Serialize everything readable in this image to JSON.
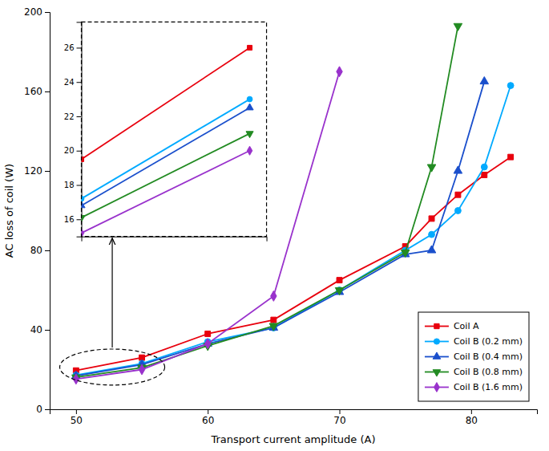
{
  "chart_data": [
    {
      "type": "line",
      "xlabel": "Transport current amplitude (A)",
      "ylabel": "AC loss of coil (W)",
      "xlim": [
        48,
        85
      ],
      "ylim": [
        0,
        200
      ],
      "xticks": [
        50,
        60,
        70,
        80
      ],
      "yticks": [
        0,
        40,
        80,
        120,
        160,
        200
      ],
      "legend": "lower right",
      "series": [
        {
          "name": "Coil A",
          "color": "#e8000d",
          "marker": "square",
          "x": [
            50,
            55,
            60,
            65,
            70,
            75,
            77,
            79,
            81,
            83
          ],
          "values": [
            19.5,
            26,
            38,
            45,
            65,
            82,
            96,
            108,
            118,
            127
          ]
        },
        {
          "name": "Coil B (0.2 mm)",
          "color": "#00aaff",
          "marker": "circle",
          "x": [
            50,
            55,
            60,
            65,
            70,
            75,
            77,
            79,
            81,
            83
          ],
          "values": [
            17.2,
            23,
            34,
            41,
            60,
            80,
            88,
            100,
            122,
            163
          ]
        },
        {
          "name": "Coil B (0.4 mm)",
          "color": "#1a4fcc",
          "marker": "triangle-up",
          "x": [
            50,
            55,
            60,
            65,
            70,
            75,
            77,
            79,
            81
          ],
          "values": [
            16.8,
            22.5,
            33,
            41,
            59,
            78,
            80,
            120,
            165
          ]
        },
        {
          "name": "Coil B (0.8 mm)",
          "color": "#228B22",
          "marker": "triangle-down",
          "x": [
            50,
            55,
            60,
            65,
            70,
            75,
            77,
            79
          ],
          "values": [
            16.1,
            21,
            32,
            42,
            60,
            79,
            122,
            193
          ]
        },
        {
          "name": "Coil B (1.6 mm)",
          "color": "#9932CC",
          "marker": "diamond",
          "x": [
            50,
            55,
            60,
            65,
            70
          ],
          "values": [
            15.2,
            20,
            33,
            57,
            170
          ]
        }
      ]
    },
    {
      "type": "line",
      "xlim": [
        50,
        55.5
      ],
      "ylim": [
        15.0,
        27.5
      ],
      "yticks": [
        16,
        18,
        20,
        22,
        24,
        26
      ],
      "tick_labels": "y",
      "series": [
        {
          "color": "#e8000d",
          "marker": "square",
          "x": [
            50,
            55
          ],
          "values": [
            19.5,
            26
          ]
        },
        {
          "color": "#00aaff",
          "marker": "circle",
          "x": [
            50,
            55
          ],
          "values": [
            17.2,
            23
          ]
        },
        {
          "color": "#1a4fcc",
          "marker": "triangle-up",
          "x": [
            50,
            55
          ],
          "values": [
            16.8,
            22.5
          ]
        },
        {
          "color": "#228B22",
          "marker": "triangle-down",
          "x": [
            50,
            55
          ],
          "values": [
            16.1,
            21
          ]
        },
        {
          "color": "#9932CC",
          "marker": "diamond",
          "x": [
            50,
            55
          ],
          "values": [
            15.2,
            20
          ]
        }
      ]
    }
  ]
}
